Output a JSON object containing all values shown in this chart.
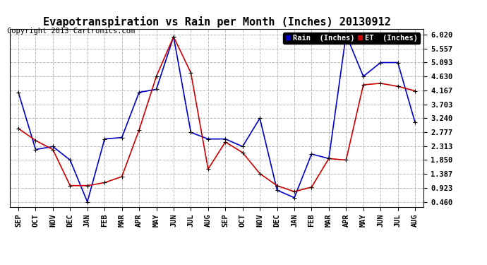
{
  "title": "Evapotranspiration vs Rain per Month (Inches) 20130912",
  "copyright": "Copyright 2013 Cartronics.com",
  "months": [
    "SEP",
    "OCT",
    "NOV",
    "DEC",
    "JAN",
    "FEB",
    "MAR",
    "APR",
    "MAY",
    "JUN",
    "JUL",
    "AUG",
    "SEP",
    "OCT",
    "NOV",
    "DEC",
    "JAN",
    "FEB",
    "MAR",
    "APR",
    "MAY",
    "JUN",
    "JUL",
    "AUG"
  ],
  "rain": [
    4.1,
    2.2,
    2.3,
    1.85,
    0.46,
    2.55,
    2.6,
    4.1,
    4.2,
    5.95,
    2.77,
    2.55,
    2.55,
    2.3,
    3.24,
    0.85,
    0.6,
    2.05,
    1.9,
    6.02,
    4.63,
    5.09,
    5.09,
    3.1
  ],
  "et": [
    2.9,
    2.5,
    2.2,
    1.0,
    1.0,
    1.1,
    1.3,
    2.85,
    4.63,
    5.95,
    4.75,
    1.55,
    2.45,
    2.1,
    1.4,
    1.0,
    0.8,
    0.95,
    1.9,
    1.85,
    4.35,
    4.4,
    4.3,
    4.15
  ],
  "rain_color": "#0000cc",
  "et_color": "#cc0000",
  "bg_color": "#ffffff",
  "grid_color": "#bbbbbb",
  "yticks": [
    0.46,
    0.923,
    1.387,
    1.85,
    2.313,
    2.777,
    3.24,
    3.703,
    4.167,
    4.63,
    5.093,
    5.557,
    6.02
  ],
  "title_fontsize": 11,
  "copyright_fontsize": 7.5,
  "tick_fontsize": 7.5,
  "marker": "+"
}
